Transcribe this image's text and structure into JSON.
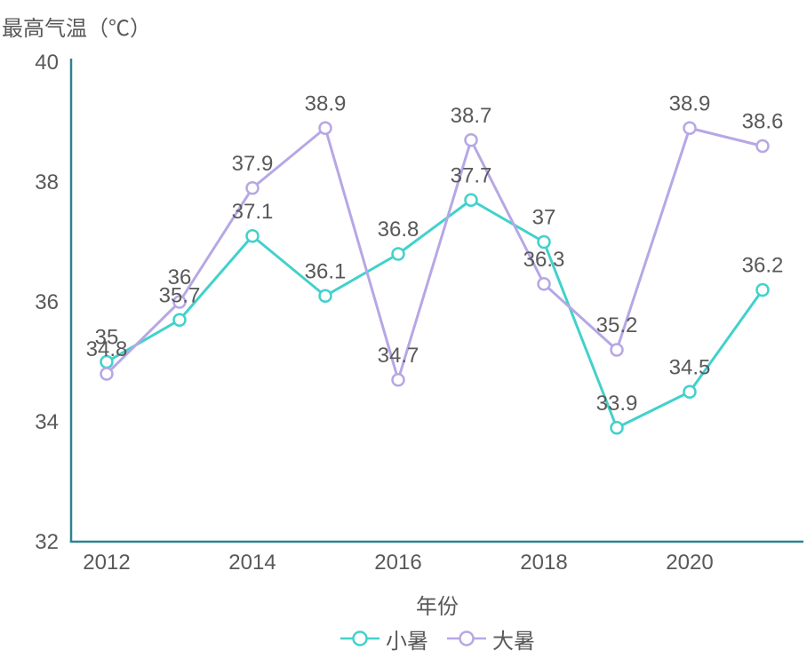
{
  "chart_data": {
    "type": "line",
    "title": "",
    "ylabel": "最高气温（℃）",
    "xlabel": "年份",
    "x": [
      2012,
      2013,
      2014,
      2015,
      2016,
      2017,
      2018,
      2019,
      2020,
      2021
    ],
    "xticks": [
      2012,
      2014,
      2016,
      2018,
      2020
    ],
    "yticks": [
      32,
      34,
      36,
      38,
      40
    ],
    "ylim": [
      32,
      40
    ],
    "grid": false,
    "data_labels": true,
    "legend_position": "bottom",
    "axis_color": "#2e8290",
    "text_color": "#595959",
    "series": [
      {
        "name": "小暑",
        "color": "#42d1cc",
        "values": [
          35,
          35.7,
          37.1,
          36.1,
          36.8,
          37.7,
          37,
          33.9,
          34.5,
          36.2
        ]
      },
      {
        "name": "大暑",
        "color": "#b7a7e5",
        "values": [
          34.8,
          36,
          37.9,
          38.9,
          34.7,
          38.7,
          36.3,
          35.2,
          38.9,
          38.6
        ]
      }
    ]
  }
}
